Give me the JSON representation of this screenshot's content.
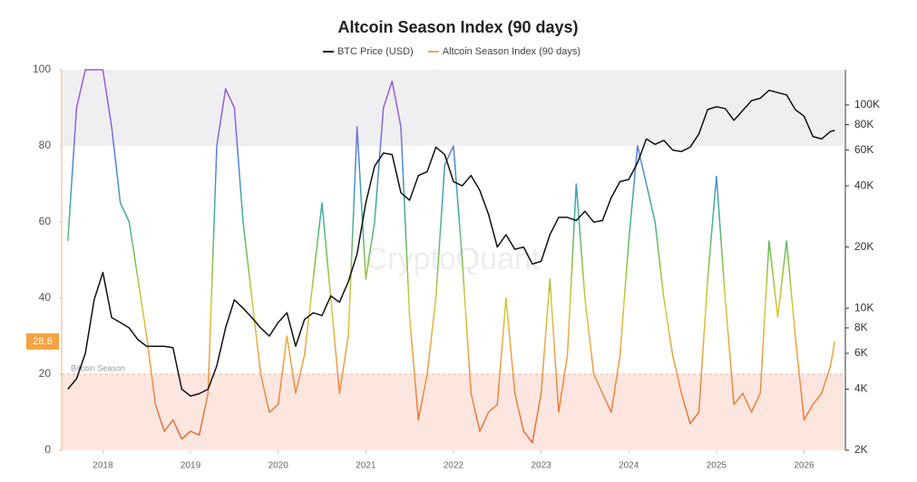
{
  "chart_data": {
    "type": "line",
    "title": "Altcoin Season Index (90 days)",
    "watermark": "CryptoQuant",
    "x": [
      2017.6,
      2017.7,
      2017.8,
      2017.9,
      2018.0,
      2018.1,
      2018.2,
      2018.3,
      2018.4,
      2018.5,
      2018.6,
      2018.7,
      2018.8,
      2018.9,
      2019.0,
      2019.1,
      2019.2,
      2019.3,
      2019.4,
      2019.5,
      2019.6,
      2019.7,
      2019.8,
      2019.9,
      2020.0,
      2020.1,
      2020.2,
      2020.3,
      2020.4,
      2020.5,
      2020.6,
      2020.7,
      2020.8,
      2020.9,
      2021.0,
      2021.1,
      2021.2,
      2021.3,
      2021.4,
      2021.5,
      2021.6,
      2021.7,
      2021.8,
      2021.9,
      2022.0,
      2022.1,
      2022.2,
      2022.3,
      2022.4,
      2022.5,
      2022.6,
      2022.7,
      2022.8,
      2022.9,
      2023.0,
      2023.1,
      2023.2,
      2023.3,
      2023.4,
      2023.5,
      2023.6,
      2023.7,
      2023.8,
      2023.9,
      2024.0,
      2024.1,
      2024.2,
      2024.3,
      2024.4,
      2024.5,
      2024.6,
      2024.7,
      2024.8,
      2024.9,
      2025.0,
      2025.1,
      2025.2,
      2025.3,
      2025.4,
      2025.5,
      2025.6,
      2025.7,
      2025.8,
      2025.9,
      2026.0,
      2026.1,
      2026.2,
      2026.3,
      2026.35
    ],
    "series": [
      {
        "name": "BTC Price (USD)",
        "color": "#111111",
        "axis": "y2",
        "values": [
          4000,
          4500,
          6000,
          11000,
          15000,
          9000,
          8500,
          8000,
          7000,
          6500,
          6500,
          6500,
          6400,
          4000,
          3700,
          3800,
          4000,
          5200,
          8000,
          11000,
          10000,
          9000,
          8000,
          7300,
          8500,
          9500,
          6500,
          8800,
          9500,
          9200,
          11500,
          10700,
          13500,
          18500,
          33000,
          50000,
          58000,
          57000,
          37000,
          34000,
          45000,
          47000,
          62000,
          57000,
          42000,
          40000,
          45000,
          38000,
          29000,
          20000,
          23000,
          19500,
          20000,
          16500,
          17000,
          23000,
          28000,
          28000,
          27000,
          30000,
          26500,
          27000,
          35000,
          42000,
          43000,
          52000,
          68000,
          64000,
          67000,
          60000,
          59000,
          62000,
          72000,
          95000,
          98000,
          96000,
          84000,
          94000,
          105000,
          108000,
          118000,
          115000,
          112000,
          95000,
          88000,
          70000,
          68000,
          74000,
          75000
        ]
      },
      {
        "name": "Altcoin Season Index (90 days)",
        "color": "#f4a46a",
        "values": [
          55,
          90,
          100,
          100,
          100,
          85,
          65,
          60,
          45,
          30,
          12,
          5,
          8,
          3,
          5,
          4,
          15,
          80,
          95,
          90,
          60,
          40,
          20,
          10,
          12,
          30,
          15,
          25,
          45,
          65,
          40,
          15,
          30,
          85,
          45,
          60,
          90,
          97,
          85,
          35,
          8,
          20,
          40,
          75,
          80,
          50,
          15,
          5,
          10,
          12,
          40,
          15,
          5,
          2,
          15,
          45,
          10,
          25,
          70,
          40,
          20,
          15,
          10,
          25,
          55,
          80,
          70,
          60,
          40,
          25,
          15,
          7,
          10,
          45,
          72,
          40,
          12,
          15,
          10,
          15,
          55,
          35,
          55,
          30,
          8,
          12,
          15,
          22,
          28.6
        ]
      }
    ],
    "color_stops": [
      [
        0,
        "#e8603c"
      ],
      [
        25,
        "#f0a040"
      ],
      [
        38,
        "#d8c832"
      ],
      [
        50,
        "#7cc04a"
      ],
      [
        62,
        "#3fb09a"
      ],
      [
        75,
        "#4a86e0"
      ],
      [
        90,
        "#9a5ae0"
      ]
    ],
    "current_value": 28.6,
    "bands": [
      {
        "from": 0,
        "to": 20,
        "label": "Bitcoin Season",
        "color": "#fde6df"
      },
      {
        "from": 80,
        "to": 100,
        "color": "#efeff1"
      }
    ],
    "xlim": [
      2017.53,
      2026.45
    ],
    "xticks": [
      2018,
      2019,
      2020,
      2021,
      2022,
      2023,
      2024,
      2025,
      2026
    ],
    "ylim": [
      0,
      100
    ],
    "yticks": [
      0,
      20,
      40,
      60,
      80,
      100
    ],
    "y2lim": [
      2000,
      149000
    ],
    "y2_log": true,
    "y2ticks": [
      {
        "value": 2000,
        "label": "2K"
      },
      {
        "value": 4000,
        "label": "4K"
      },
      {
        "value": 6000,
        "label": "6K"
      },
      {
        "value": 8000,
        "label": "8K"
      },
      {
        "value": 10000,
        "label": "10K"
      },
      {
        "value": 20000,
        "label": "20K"
      },
      {
        "value": 40000,
        "label": "40K"
      },
      {
        "value": 60000,
        "label": "60K"
      },
      {
        "value": 80000,
        "label": "80K"
      },
      {
        "value": 100000,
        "label": "100K"
      }
    ]
  }
}
